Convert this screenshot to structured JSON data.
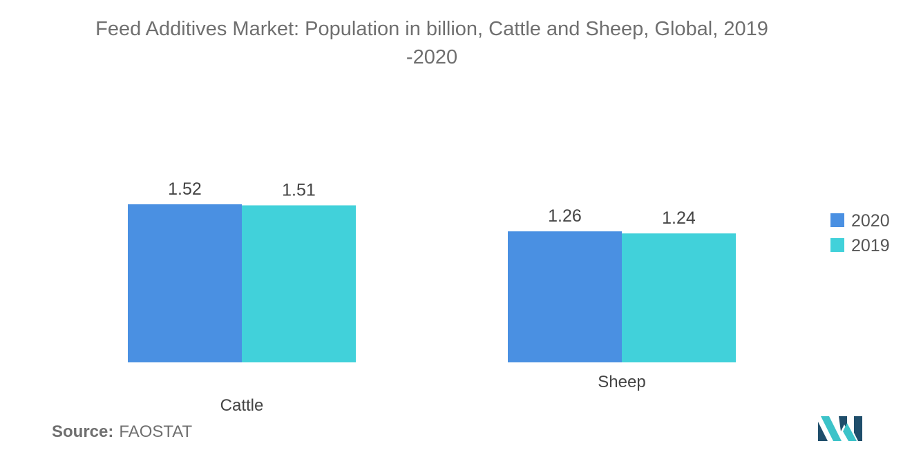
{
  "title_line1": "Feed Additives Market: Population in billion, Cattle and Sheep, Global, 2019",
  "title_line2": "-2020",
  "source": {
    "label": "Source:",
    "value": "FAOSTAT"
  },
  "colors": {
    "series_2020": "#4a90e2",
    "series_2019": "#41d1da",
    "logo_dark": "#1f4e6b",
    "logo_teal": "#3cc3c9"
  },
  "chart_data": {
    "type": "bar",
    "categories": [
      "Cattle",
      "Sheep"
    ],
    "series": [
      {
        "name": "2020",
        "values": [
          1.52,
          1.26
        ],
        "color": "#4a90e2"
      },
      {
        "name": "2019",
        "values": [
          1.51,
          1.24
        ],
        "color": "#41d1da"
      }
    ],
    "ylim": [
      0,
      1.52
    ],
    "grid": false,
    "legend": "right",
    "data_labels": true,
    "xlabel": "",
    "ylabel": ""
  }
}
